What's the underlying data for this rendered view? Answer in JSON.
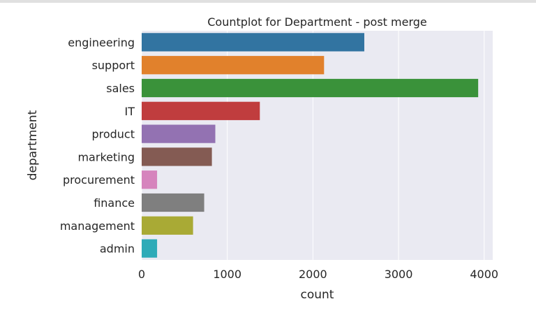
{
  "chart_data": {
    "type": "bar",
    "orientation": "horizontal",
    "title": "Countplot for Department - post merge",
    "xlabel": "count",
    "ylabel": "department",
    "xlim": [
      0,
      4100
    ],
    "xticks": [
      0,
      1000,
      2000,
      3000,
      4000
    ],
    "grid": true,
    "categories": [
      "engineering",
      "support",
      "sales",
      "IT",
      "product",
      "marketing",
      "procurement",
      "finance",
      "management",
      "admin"
    ],
    "values": [
      2600,
      2130,
      3930,
      1380,
      860,
      820,
      180,
      730,
      600,
      180
    ],
    "colors": [
      "#3274a1",
      "#e1812c",
      "#3a923a",
      "#c03d3e",
      "#9372b2",
      "#845b53",
      "#d684bd",
      "#7f7f7f",
      "#a9aa35",
      "#2eabb8"
    ],
    "plot_background": "#eaeaf2",
    "gridline_color": "#ffffff"
  }
}
